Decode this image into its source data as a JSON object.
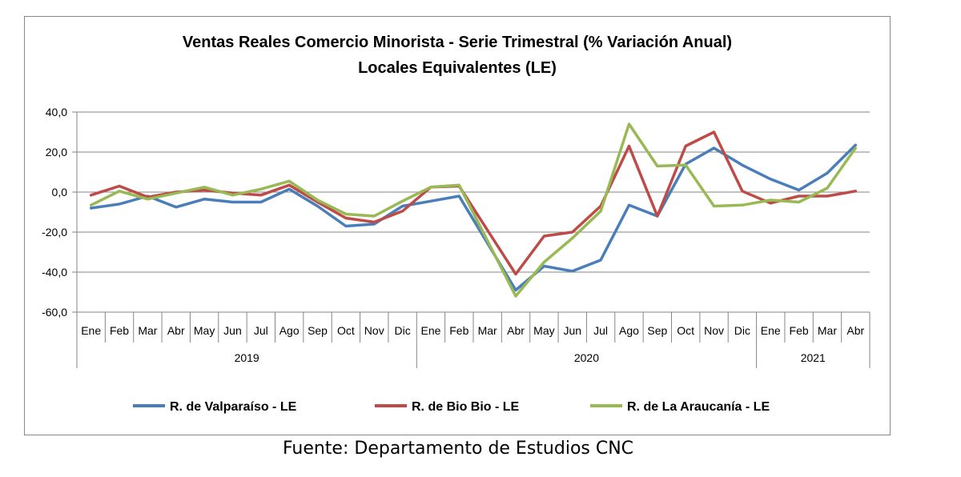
{
  "chart_data": {
    "type": "line",
    "title": "Ventas Reales Comercio Minorista - Serie Trimestral (% Variación Anual)",
    "subtitle": "Locales Equivalentes (LE)",
    "categories": [
      "Ene",
      "Feb",
      "Mar",
      "Abr",
      "May",
      "Jun",
      "Jul",
      "Ago",
      "Sep",
      "Oct",
      "Nov",
      "Dic",
      "Ene",
      "Feb",
      "Mar",
      "Abr",
      "May",
      "Jun",
      "Jul",
      "Ago",
      "Sep",
      "Oct",
      "Nov",
      "Dic",
      "Ene",
      "Feb",
      "Mar",
      "Abr"
    ],
    "year_groups": [
      {
        "label": "2019",
        "count": 12
      },
      {
        "label": "2020",
        "count": 12
      },
      {
        "label": "2021",
        "count": 4
      }
    ],
    "ylim": [
      -60,
      40
    ],
    "yticks": [
      40,
      20,
      0,
      -20,
      -40,
      -60
    ],
    "ytick_labels": [
      "40,0",
      "20,0",
      "0,0",
      "-20,0",
      "-40,0",
      "-60,0"
    ],
    "grid": "horizontal",
    "legend_position": "bottom",
    "series": [
      {
        "name": "R. de Valparaíso - LE",
        "color": "#4a7ebb",
        "values": [
          -8,
          -6,
          -2,
          -7.5,
          -3.5,
          -5,
          -5,
          1.5,
          -7,
          -17,
          -16,
          -7,
          -4.5,
          -2,
          null,
          -49,
          -37,
          -39.5,
          -34,
          -6.5,
          -12,
          14,
          22,
          13.5,
          6.5,
          1,
          9.5,
          23.5
        ]
      },
      {
        "name": "R. de Bio Bio - LE",
        "color": "#be4b48",
        "values": [
          -1.5,
          3,
          -2.5,
          0,
          1,
          -0.5,
          -1.5,
          3.5,
          -5,
          -13,
          -15,
          -9.5,
          2.5,
          3,
          null,
          -41,
          -22,
          -20,
          -7,
          23,
          -12,
          23,
          30,
          0.5,
          -5.5,
          -2,
          -2,
          0.5
        ]
      },
      {
        "name": "R. de La Araucanía - LE",
        "color": "#98b954",
        "values": [
          -6.5,
          0.5,
          -3.5,
          -0.5,
          2.5,
          -1.5,
          1.5,
          5.5,
          -4,
          -11,
          -12,
          -4.5,
          2.5,
          3.5,
          null,
          -52,
          -35,
          -23,
          -9.5,
          34,
          13,
          13.5,
          -7,
          -6.5,
          -4,
          -5,
          2,
          22
        ]
      }
    ]
  },
  "footer": {
    "source": "Fuente: Departamento de Estudios CNC"
  }
}
